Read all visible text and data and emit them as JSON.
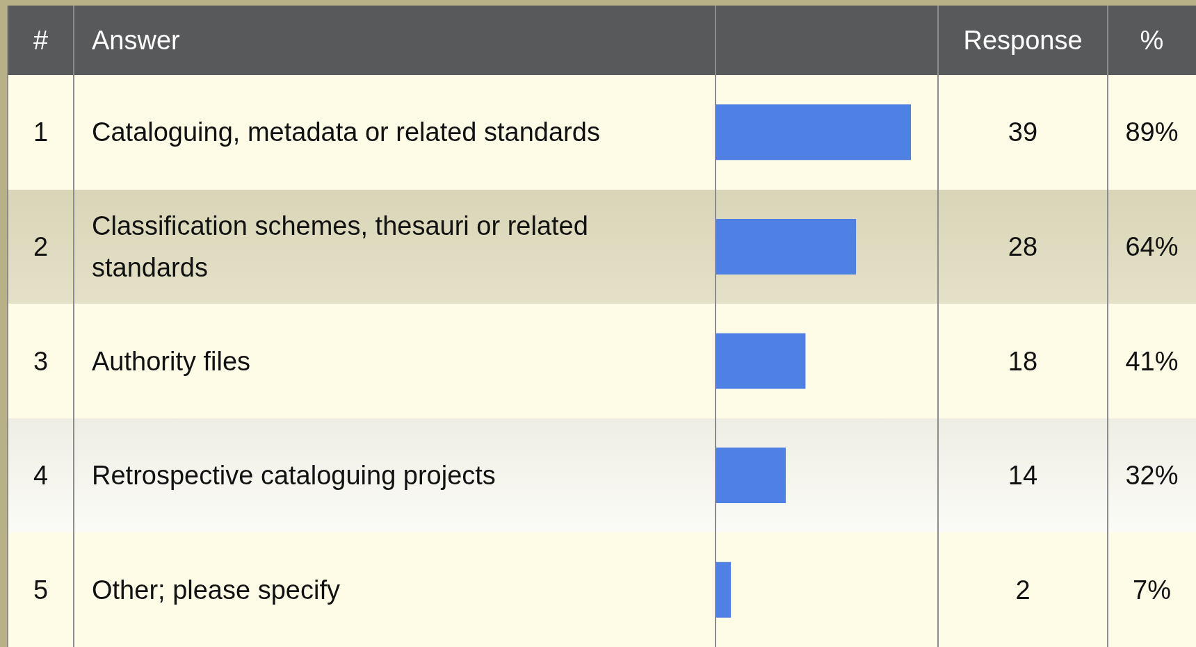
{
  "chart_data": {
    "type": "bar",
    "orientation": "horizontal",
    "categories": [
      "Cataloguing, metadata or related standards",
      "Classification schemes, thesauri or related standards",
      "Authority files",
      "Retrospective cataloguing projects",
      "Other; please specify"
    ],
    "values": [
      89,
      64,
      41,
      32,
      7
    ],
    "value_labels": [
      "89%",
      "64%",
      "41%",
      "32%",
      "7%"
    ],
    "color": "#4f81e5",
    "annotations": [
      "#",
      "Answer",
      "Response",
      "%",
      "1",
      "2",
      "3",
      "4",
      "5",
      "39",
      "28",
      "18",
      "14",
      "2"
    ]
  }
}
